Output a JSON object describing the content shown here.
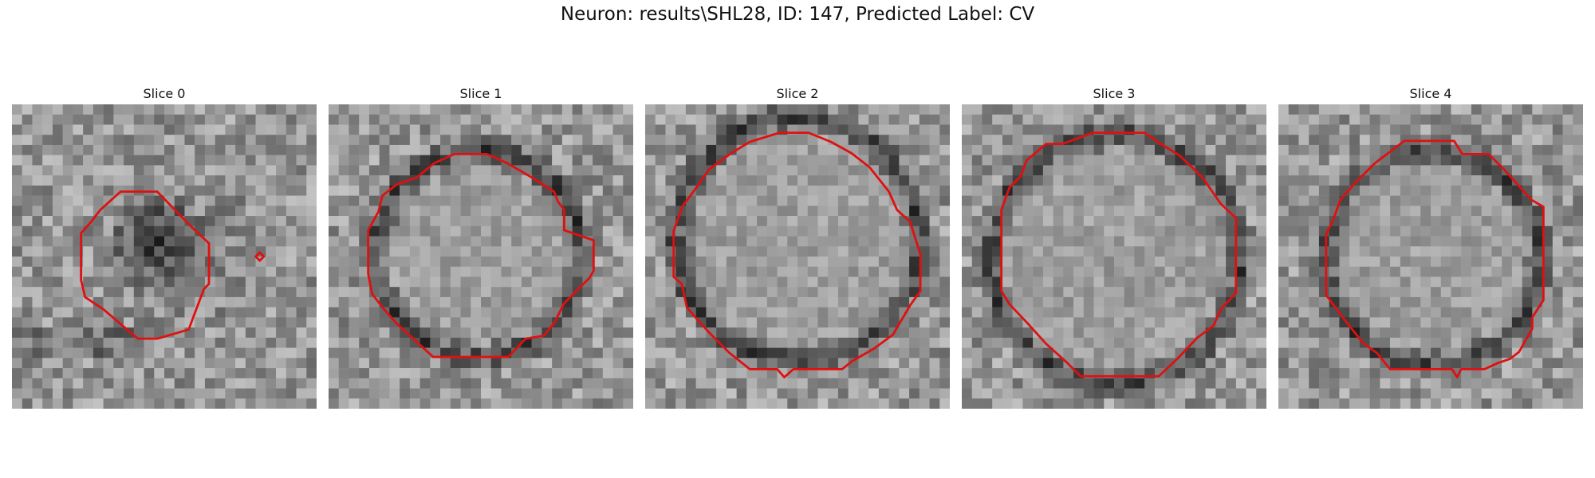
{
  "figure": {
    "title": "Neuron: results\\SHL28, ID: 147, Predicted Label: CV",
    "contour_color": "#e01010"
  },
  "slices": [
    {
      "label": "Slice 0"
    },
    {
      "label": "Slice 1"
    },
    {
      "label": "Slice 2"
    },
    {
      "label": "Slice 3"
    },
    {
      "label": "Slice 4"
    }
  ]
}
